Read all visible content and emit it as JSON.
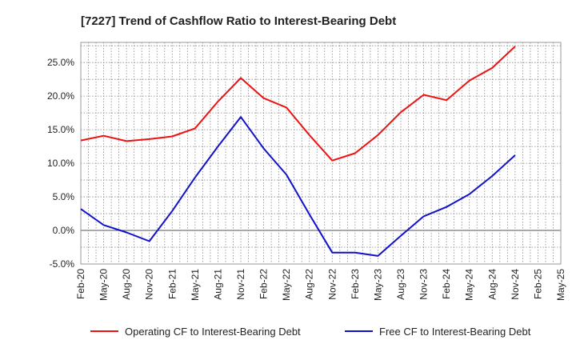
{
  "colors": {
    "operating": "#ee1111",
    "free": "#1111cc",
    "grid": "#888888",
    "zero_line": "#555555",
    "plot_border": "#999999"
  },
  "chart_data": {
    "type": "line",
    "title": "[7227]  Trend of Cashflow Ratio to Interest-Bearing Debt",
    "xlabel": "",
    "ylabel": "",
    "x": [
      "Feb-20",
      "May-20",
      "Aug-20",
      "Nov-20",
      "Feb-21",
      "May-21",
      "Aug-21",
      "Nov-21",
      "Feb-22",
      "May-22",
      "Aug-22",
      "Nov-22",
      "Feb-23",
      "May-23",
      "Aug-23",
      "Nov-23",
      "Feb-24",
      "May-24",
      "Aug-24",
      "Nov-24",
      "Feb-25",
      "May-25"
    ],
    "ylim": [
      -5,
      28
    ],
    "yticks": [
      -5,
      0,
      5,
      10,
      15,
      20,
      25
    ],
    "ytick_labels": [
      "-5.0%",
      "0.0%",
      "5.0%",
      "10.0%",
      "15.0%",
      "20.0%",
      "25.0%"
    ],
    "grid": true,
    "legend": "bottom",
    "series": [
      {
        "name": "Operating CF to Interest-Bearing Debt",
        "values": [
          13.4,
          14.1,
          13.3,
          13.6,
          14.0,
          15.2,
          19.2,
          22.7,
          19.7,
          18.3,
          14.2,
          10.4,
          11.5,
          14.2,
          17.6,
          20.2,
          19.4,
          22.3,
          24.2,
          27.4,
          null,
          null
        ]
      },
      {
        "name": "Free CF to Interest-Bearing Debt",
        "values": [
          3.2,
          0.8,
          -0.3,
          -1.6,
          2.9,
          7.9,
          12.5,
          16.9,
          12.2,
          8.3,
          2.4,
          -3.3,
          -3.3,
          -3.8,
          -0.8,
          2.1,
          3.5,
          5.4,
          8.1,
          11.2,
          null,
          null
        ]
      }
    ]
  }
}
